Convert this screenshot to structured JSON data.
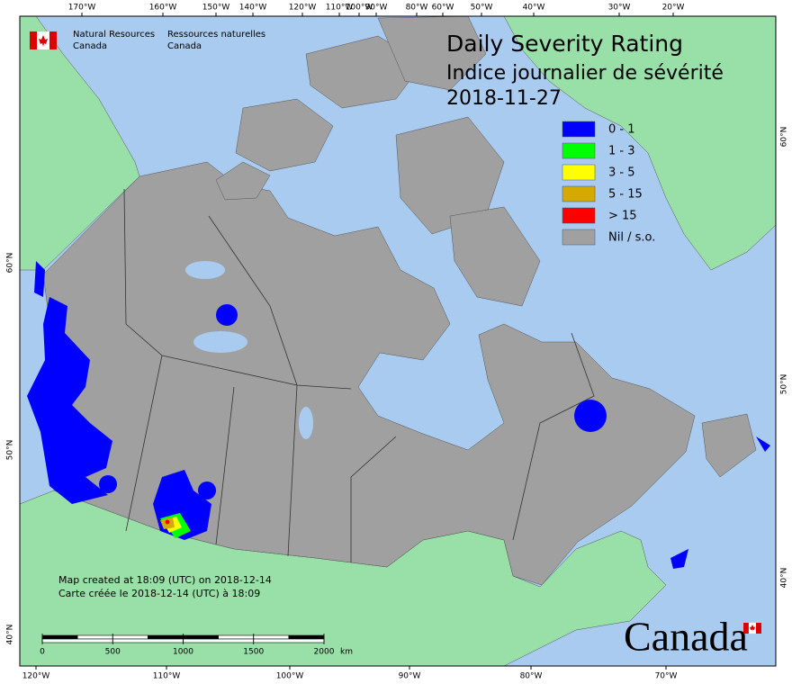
{
  "logo": {
    "en": [
      "Natural Resources",
      "Canada"
    ],
    "fr": [
      "Ressources naturelles",
      "Canada"
    ]
  },
  "title": [
    "Daily Severity Rating",
    "Indice journalier de sévérité"
  ],
  "date": "2018-11-27",
  "legend": [
    {
      "label": "0 - 1",
      "color": "#0000ff"
    },
    {
      "label": "1 - 3",
      "color": "#00ff00"
    },
    {
      "label": "3 - 5",
      "color": "#ffff00"
    },
    {
      "label": "5 - 15",
      "color": "#d4aa00"
    },
    {
      "label": "> 15",
      "color": "#ff0000"
    },
    {
      "label": "Nil / s.o.",
      "color": "#a0a0a0"
    }
  ],
  "graticule": {
    "top": [
      "170°W",
      "160°W",
      "150°W",
      "140°W",
      "120°W",
      "110°W",
      "100°W",
      "90°W",
      "80°W",
      "60°W",
      "50°W",
      "40°W",
      "30°W",
      "20°W"
    ],
    "bottom": [
      "120°W",
      "110°W",
      "100°W",
      "90°W",
      "80°W",
      "70°W"
    ],
    "left": [
      "60°N",
      "50°N",
      "40°N"
    ],
    "right": [
      "60°N",
      "50°N",
      "40°N"
    ]
  },
  "note": [
    "Map created at 18:09 (UTC) on 2018-12-14",
    "Carte créée le 2018-12-14 (UTC) à 18:09"
  ],
  "scale_bar": {
    "ticks": [
      0,
      500,
      1000,
      1500,
      2000
    ],
    "unit": "km"
  },
  "wordmark": "Canada"
}
